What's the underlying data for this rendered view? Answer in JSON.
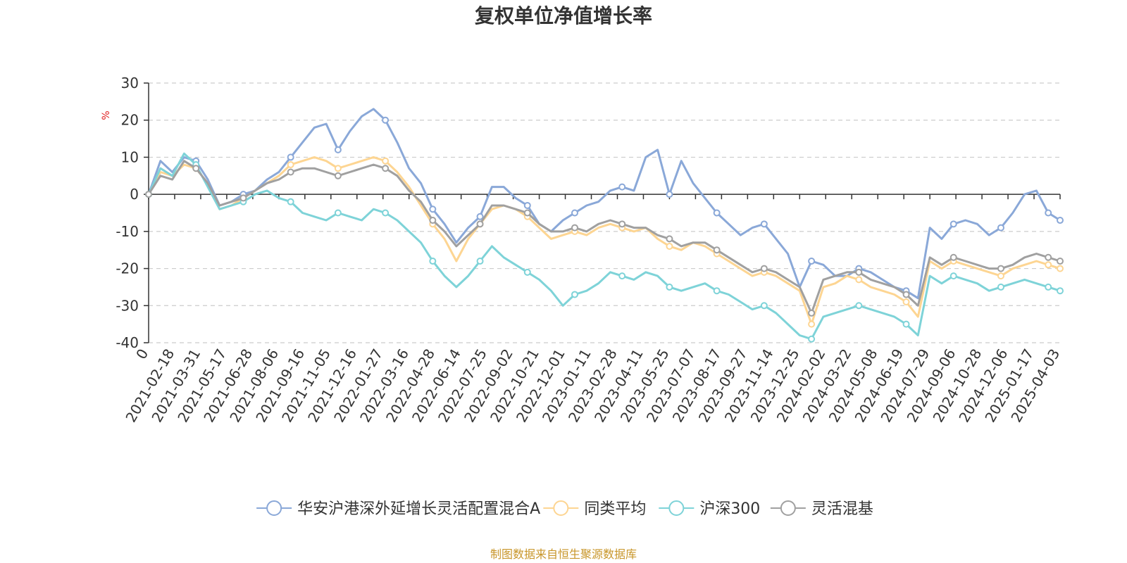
{
  "chart_data": {
    "type": "line",
    "title": "复权单位净值增长率",
    "ylabel": "%",
    "xlabel": "",
    "ylim": [
      -40,
      30
    ],
    "yticks": [
      -40,
      -30,
      -20,
      -10,
      0,
      10,
      20,
      30
    ],
    "x_ticks": [
      "0",
      "2021-02-18",
      "2021-03-31",
      "2021-05-17",
      "2021-06-28",
      "2021-08-06",
      "2021-09-16",
      "2021-11-05",
      "2021-12-16",
      "2022-01-27",
      "2022-03-16",
      "2022-04-28",
      "2022-06-14",
      "2022-07-25",
      "2022-09-02",
      "2022-10-21",
      "2022-12-01",
      "2023-01-11",
      "2023-02-28",
      "2023-04-11",
      "2023-05-25",
      "2023-07-07",
      "2023-08-17",
      "2023-09-27",
      "2023-11-14",
      "2023-12-25",
      "2024-02-02",
      "2024-03-22",
      "2024-05-08",
      "2024-06-19",
      "2024-07-29",
      "2024-09-06",
      "2024-10-28",
      "2024-12-06",
      "2025-01-17",
      "2025-04-03"
    ],
    "grid": "horizontal-dashed",
    "legend_position": "bottom",
    "series": [
      {
        "name": "华安沪港深外延增长灵活配置混合A",
        "color": "#8aa8d8",
        "values": [
          0,
          9,
          6,
          10,
          9,
          4,
          -3,
          -2,
          0,
          1,
          4,
          6,
          10,
          14,
          18,
          19,
          12,
          17,
          21,
          23,
          20,
          14,
          7,
          3,
          -4,
          -8,
          -13,
          -9,
          -6,
          2,
          2,
          -1,
          -3,
          -8,
          -10,
          -7,
          -5,
          -3,
          -2,
          1,
          2,
          1,
          10,
          12,
          0,
          9,
          3,
          -1,
          -5,
          -8,
          -11,
          -9,
          -8,
          -12,
          -16,
          -25,
          -18,
          -19,
          -22,
          -22,
          -20,
          -21,
          -23,
          -25,
          -26,
          -28,
          -9,
          -12,
          -8,
          -7,
          -8,
          -11,
          -9,
          -5,
          0,
          1,
          -5,
          -7
        ]
      },
      {
        "name": "同类平均",
        "color": "#fdd592",
        "values": [
          0,
          6,
          5,
          8,
          7,
          3,
          -4,
          -3,
          -1,
          1,
          3,
          5,
          8,
          9,
          10,
          9,
          7,
          8,
          9,
          10,
          9,
          6,
          2,
          -3,
          -8,
          -12,
          -18,
          -12,
          -8,
          -4,
          -3,
          -4,
          -6,
          -9,
          -12,
          -11,
          -10,
          -11,
          -9,
          -8,
          -9,
          -10,
          -9,
          -12,
          -14,
          -15,
          -13,
          -14,
          -16,
          -18,
          -20,
          -22,
          -21,
          -22,
          -24,
          -26,
          -35,
          -25,
          -24,
          -22,
          -23,
          -25,
          -26,
          -27,
          -29,
          -33,
          -18,
          -20,
          -18,
          -19,
          -20,
          -21,
          -22,
          -20,
          -19,
          -18,
          -19,
          -20
        ]
      },
      {
        "name": "沪深300",
        "color": "#7ed3d8",
        "values": [
          0,
          7,
          5,
          11,
          8,
          2,
          -4,
          -3,
          -2,
          0,
          1,
          -1,
          -2,
          -5,
          -6,
          -7,
          -5,
          -6,
          -7,
          -4,
          -5,
          -7,
          -10,
          -13,
          -18,
          -22,
          -25,
          -22,
          -18,
          -14,
          -17,
          -19,
          -21,
          -23,
          -26,
          -30,
          -27,
          -26,
          -24,
          -21,
          -22,
          -23,
          -21,
          -22,
          -25,
          -26,
          -25,
          -24,
          -26,
          -27,
          -29,
          -31,
          -30,
          -32,
          -35,
          -38,
          -39,
          -33,
          -32,
          -31,
          -30,
          -31,
          -32,
          -33,
          -35,
          -38,
          -22,
          -24,
          -22,
          -23,
          -24,
          -26,
          -25,
          -24,
          -23,
          -24,
          -25,
          -26
        ]
      },
      {
        "name": "灵活混基",
        "color": "#a0a0a0",
        "values": [
          0,
          5,
          4,
          9,
          7,
          3,
          -3,
          -2,
          -1,
          1,
          3,
          4,
          6,
          7,
          7,
          6,
          5,
          6,
          7,
          8,
          7,
          5,
          1,
          -2,
          -7,
          -10,
          -14,
          -11,
          -8,
          -3,
          -3,
          -4,
          -5,
          -8,
          -10,
          -10,
          -9,
          -10,
          -8,
          -7,
          -8,
          -9,
          -9,
          -11,
          -12,
          -14,
          -13,
          -13,
          -15,
          -17,
          -19,
          -21,
          -20,
          -21,
          -23,
          -25,
          -32,
          -23,
          -22,
          -21,
          -21,
          -23,
          -24,
          -25,
          -27,
          -30,
          -17,
          -19,
          -17,
          -18,
          -19,
          -20,
          -20,
          -19,
          -17,
          -16,
          -17,
          -18
        ]
      }
    ]
  },
  "source_note": "制图数据来自恒生聚源数据库"
}
